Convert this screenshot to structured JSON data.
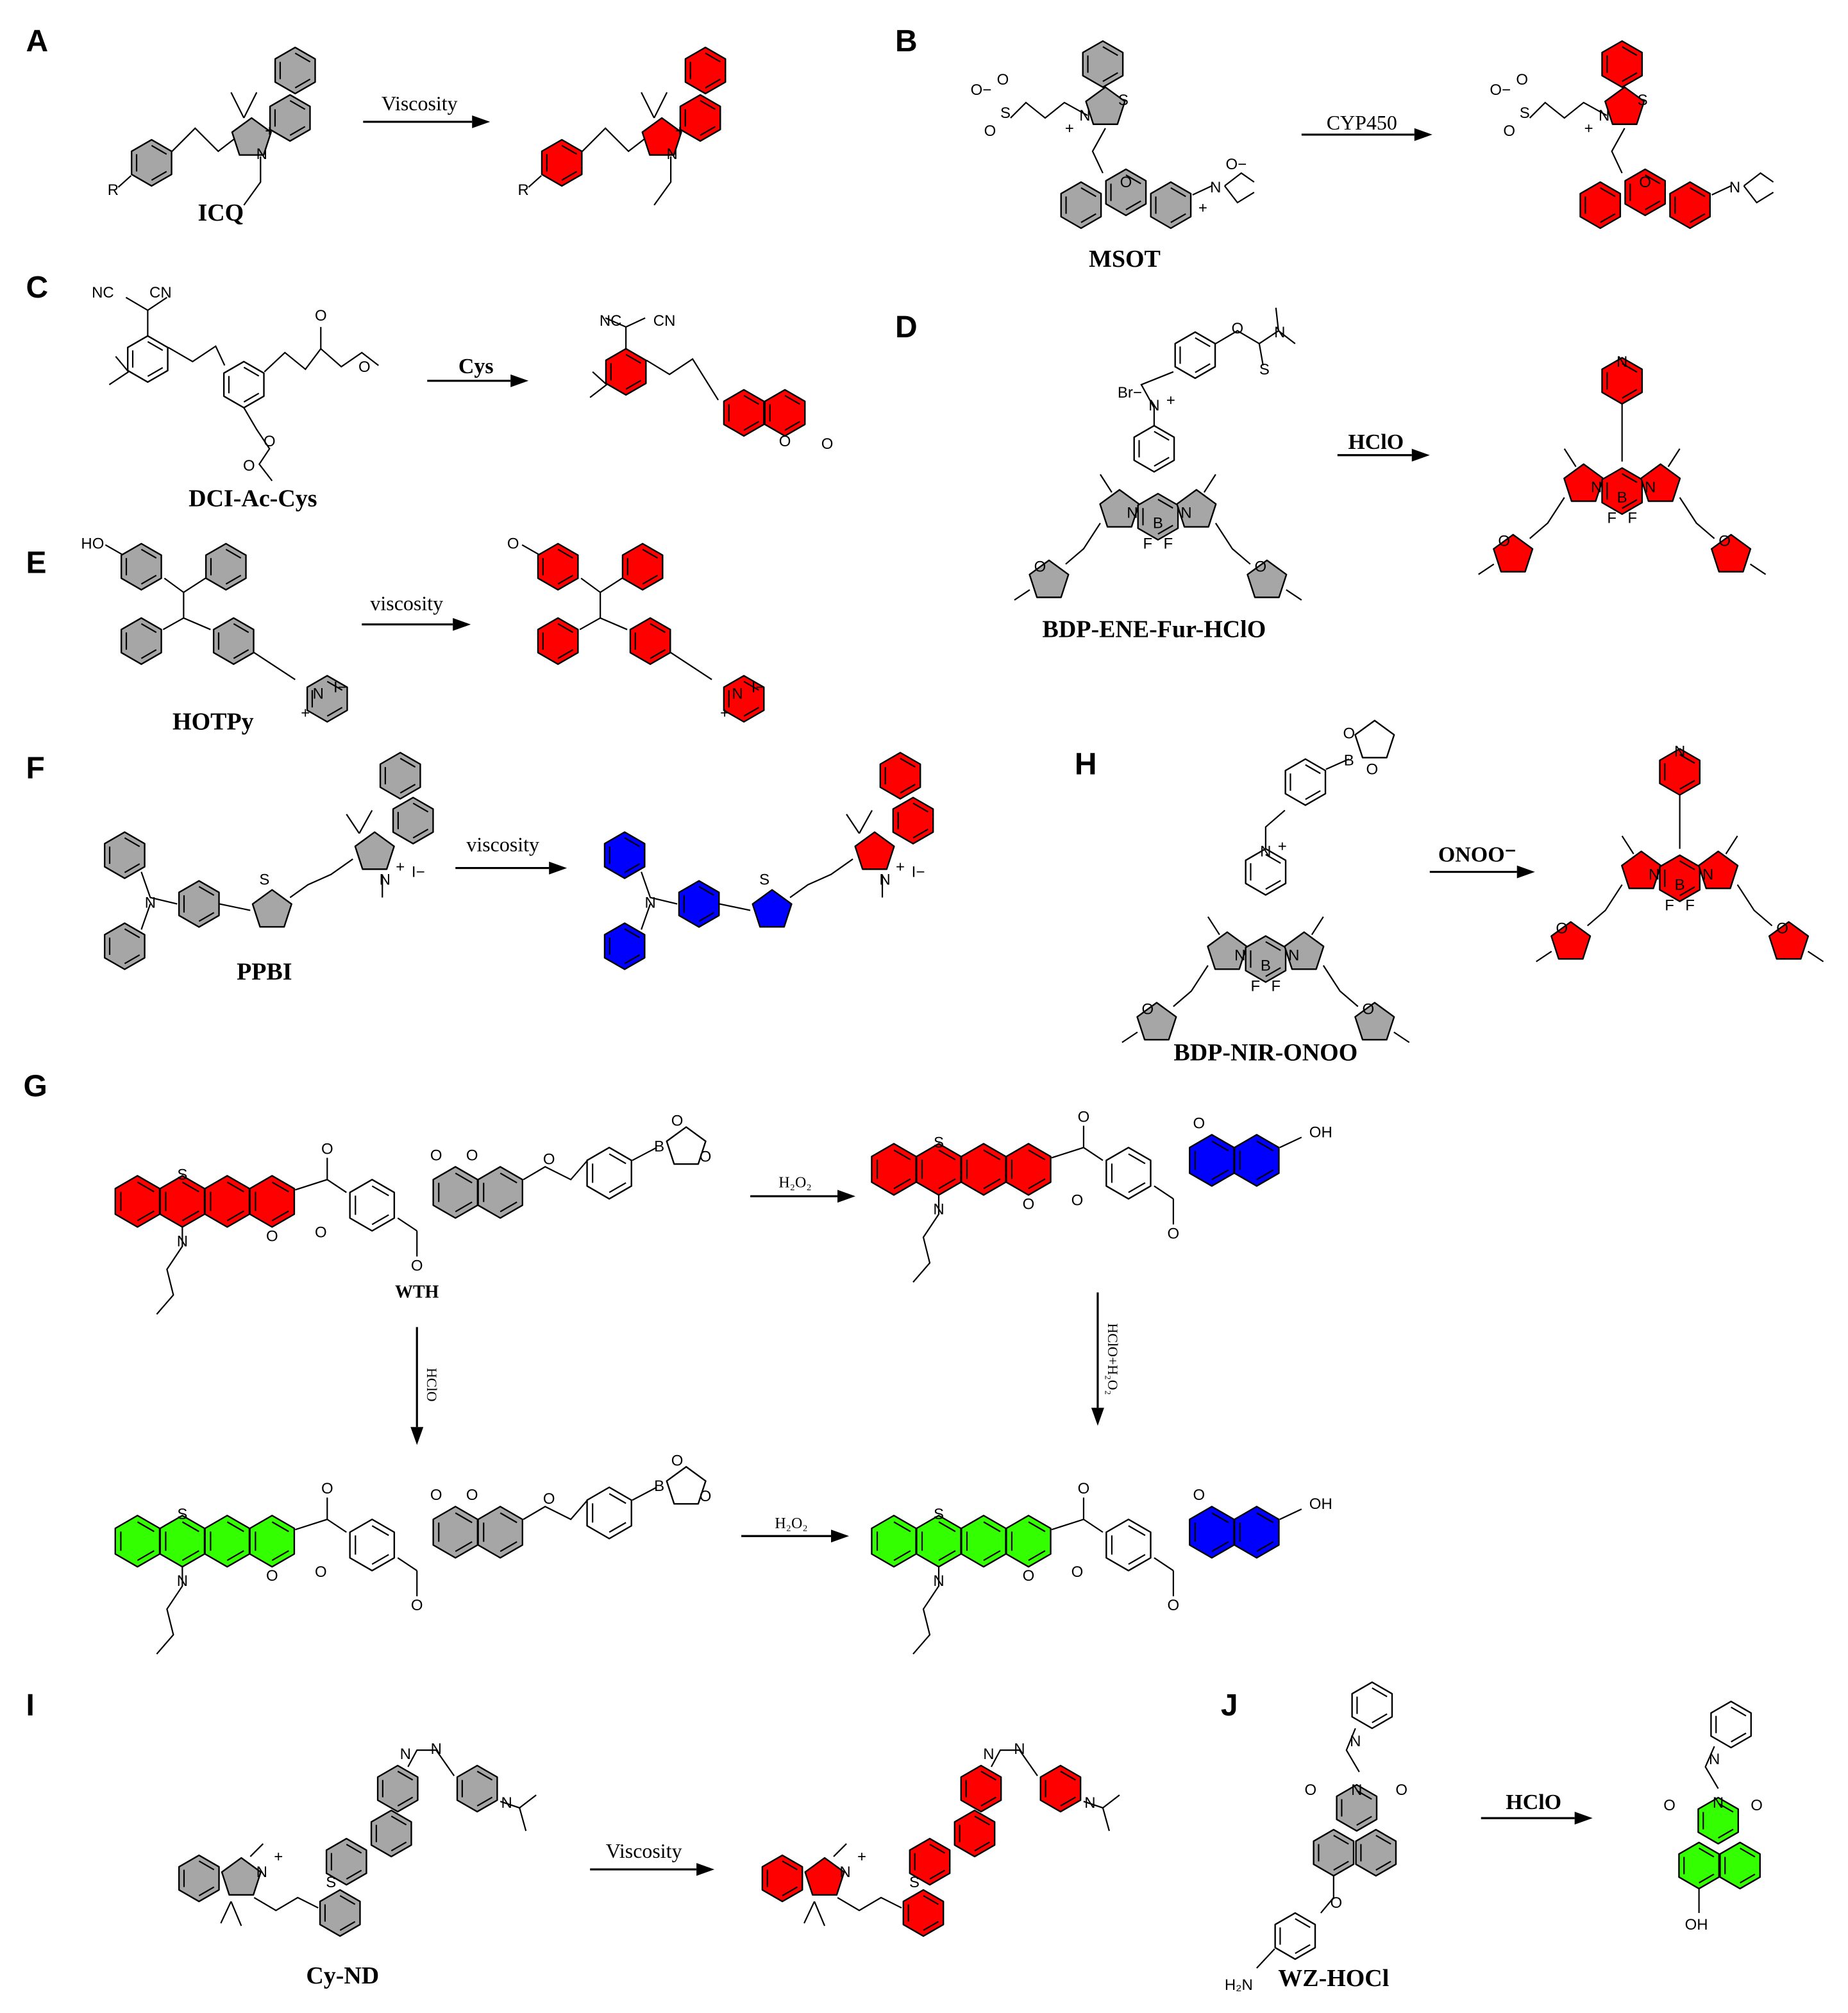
{
  "colors": {
    "neutral": "#a6a6a6",
    "red": "#ff0000",
    "blue": "#0000ff",
    "green": "#33ff00",
    "plain": "#ffffff"
  },
  "panels": {
    "A": {
      "letter": "A",
      "reagent": "Viscosity",
      "name": "ICQ",
      "atoms": [
        "R",
        "N",
        "+"
      ]
    },
    "B": {
      "letter": "B",
      "reagent": "CYP450",
      "name": "MSOT",
      "atoms": [
        "O",
        "S",
        "O",
        "O−",
        "N",
        "S",
        "+",
        "N",
        "O−",
        "+",
        "O"
      ]
    },
    "C": {
      "letter": "C",
      "reagent": "Cys",
      "name": "DCI-Ac-Cys",
      "atoms": [
        "NC",
        "CN",
        "O",
        "O",
        "O",
        "O",
        "O"
      ]
    },
    "D": {
      "letter": "D",
      "reagent": "HClO",
      "name": "BDP-ENE-Fur-HClO",
      "atoms": [
        "O",
        "N",
        "S",
        "Br−",
        "N",
        "+",
        "N",
        "B",
        "N",
        "F",
        "F",
        "O",
        "O"
      ]
    },
    "E": {
      "letter": "E",
      "reagent": "viscosity",
      "name": "HOTPy",
      "atoms": [
        "HO",
        "N",
        "I−",
        "+",
        "O"
      ]
    },
    "F": {
      "letter": "F",
      "reagent": "viscosity",
      "name": "PPBI",
      "atoms": [
        "N",
        "S",
        "N",
        "+",
        "I−"
      ]
    },
    "H": {
      "letter": "H",
      "reagent": "ONOO⁻",
      "name": "BDP-NIR-ONOO",
      "atoms": [
        "B",
        "O",
        "O",
        "N",
        "+",
        "N",
        "B",
        "N",
        "F",
        "F",
        "O",
        "O"
      ]
    },
    "G": {
      "letter": "G",
      "name": "WTH",
      "reagents": [
        "H₂O₂",
        "HClO",
        "HClO+H₂O₂",
        "H₂O₂"
      ],
      "atoms": [
        "S",
        "N",
        "O",
        "O",
        "O",
        "O",
        "O",
        "O",
        "O",
        "B",
        "O",
        "O",
        "OH",
        "O"
      ]
    },
    "I": {
      "letter": "I",
      "reagent": "Viscosity",
      "name": "Cy-ND",
      "atoms": [
        "N",
        "+",
        "S",
        "N",
        "N",
        "N"
      ]
    },
    "J": {
      "letter": "J",
      "reagent": "HClO",
      "name": "WZ-HOCl",
      "atoms": [
        "N",
        "N",
        "O",
        "O",
        "O",
        "H₂N",
        "OH"
      ]
    }
  }
}
